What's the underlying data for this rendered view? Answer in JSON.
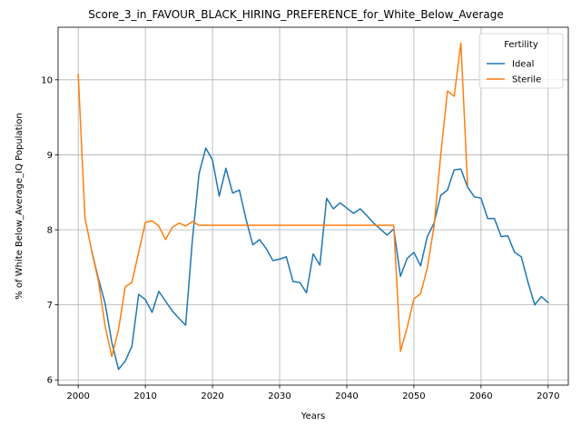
{
  "chart_data": {
    "type": "line",
    "title": "Score_3_in_FAVOUR_BLACK_HIRING_PREFERENCE_for_White_Below_Average",
    "xlabel": "Years",
    "ylabel": "% of White Below_Average_IQ Population",
    "xlim": [
      1997,
      2073
    ],
    "ylim": [
      5.93,
      10.7
    ],
    "xticks": [
      2000,
      2010,
      2020,
      2030,
      2040,
      2050,
      2060,
      2070
    ],
    "yticks": [
      6,
      7,
      8,
      9,
      10
    ],
    "grid": true,
    "legend": {
      "title": "Fertility",
      "placement": "top-right"
    },
    "series": [
      {
        "name": "Ideal",
        "color": "#1f77b4",
        "x": [
          2002,
          2003,
          2004,
          2005,
          2006,
          2007,
          2008,
          2009,
          2010,
          2011,
          2012,
          2013,
          2014,
          2015,
          2016,
          2017,
          2018,
          2019,
          2020,
          2021,
          2022,
          2023,
          2024,
          2025,
          2026,
          2027,
          2028,
          2029,
          2030,
          2031,
          2032,
          2033,
          2034,
          2035,
          2036,
          2037,
          2038,
          2039,
          2040,
          2041,
          2042,
          2043,
          2044,
          2045,
          2046,
          2047,
          2048,
          2049,
          2050,
          2051,
          2052,
          2053,
          2054,
          2055,
          2056,
          2057,
          2058,
          2059,
          2060,
          2061,
          2062,
          2063,
          2064,
          2065,
          2066,
          2067,
          2068,
          2069,
          2070
        ],
        "y": [
          7.72,
          7.35,
          7.02,
          6.5,
          6.14,
          6.25,
          6.45,
          7.14,
          7.07,
          6.9,
          7.18,
          7.05,
          6.92,
          6.82,
          6.73,
          7.86,
          8.75,
          9.09,
          8.93,
          8.45,
          8.82,
          8.49,
          8.53,
          8.14,
          7.8,
          7.87,
          7.75,
          7.59,
          7.61,
          7.64,
          7.31,
          7.3,
          7.16,
          7.68,
          7.53,
          8.42,
          8.28,
          8.36,
          8.29,
          8.22,
          8.28,
          8.19,
          8.09,
          8.01,
          7.93,
          8.01,
          7.38,
          7.62,
          7.7,
          7.52,
          7.91,
          8.09,
          8.46,
          8.53,
          8.8,
          8.81,
          8.57,
          8.44,
          8.42,
          8.15,
          8.15,
          7.91,
          7.92,
          7.7,
          7.64,
          7.3,
          7.0,
          7.11,
          7.03
        ]
      },
      {
        "name": "Sterile",
        "color": "#ff7f0e",
        "x": [
          2000,
          2001,
          2002,
          2003,
          2004,
          2005,
          2006,
          2007,
          2008,
          2009,
          2010,
          2011,
          2012,
          2013,
          2014,
          2015,
          2016,
          2017,
          2018,
          2019,
          2020,
          2025,
          2030,
          2035,
          2040,
          2045,
          2047,
          2048,
          2049,
          2050,
          2051,
          2052,
          2053,
          2054,
          2055,
          2056,
          2057,
          2058
        ],
        "y": [
          10.07,
          8.16,
          7.72,
          7.32,
          6.72,
          6.31,
          6.67,
          7.24,
          7.3,
          7.7,
          8.1,
          8.12,
          8.05,
          7.87,
          8.03,
          8.09,
          8.05,
          8.11,
          8.06,
          8.06,
          8.06,
          8.06,
          8.06,
          8.06,
          8.06,
          8.06,
          8.06,
          6.38,
          6.7,
          7.08,
          7.15,
          7.49,
          8.05,
          9.0,
          9.85,
          9.78,
          10.49,
          8.6
        ]
      }
    ]
  }
}
